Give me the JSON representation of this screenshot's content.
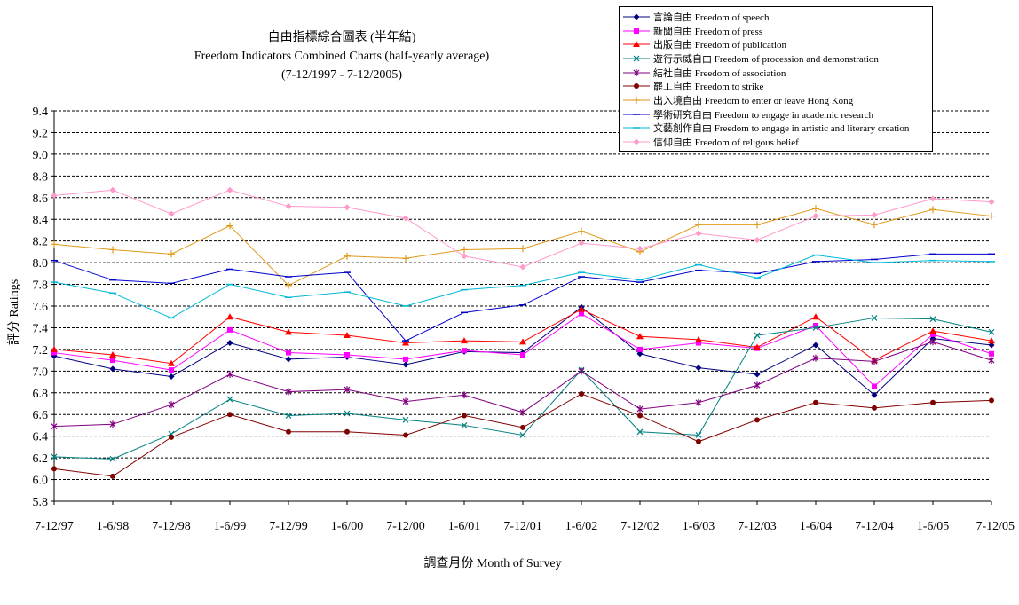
{
  "chart_data": {
    "type": "line",
    "title": "自由指標綜合圖表 (半年結)",
    "subtitle": "Freedom Indicators Combined Charts (half-yearly average)",
    "period": "(7-12/1997 - 7-12/2005)",
    "xlabel": "調查月份 Month of Survey",
    "ylabel": "評分 Ratings",
    "ylim": [
      5.8,
      9.4
    ],
    "ytick_step": 0.2,
    "grid": true,
    "legend_position": "top-right",
    "categories": [
      "7-12/97",
      "1-6/98",
      "7-12/98",
      "1-6/99",
      "7-12/99",
      "1-6/00",
      "7-12/00",
      "1-6/01",
      "7-12/01",
      "1-6/02",
      "7-12/02",
      "1-6/03",
      "7-12/03",
      "1-6/04",
      "7-12/04",
      "1-6/05",
      "7-12/05"
    ],
    "series": [
      {
        "name": "言論自由 Freedom of speech",
        "color": "#00007f",
        "marker": "diamond",
        "values": [
          7.14,
          7.02,
          6.95,
          7.26,
          7.11,
          7.13,
          7.06,
          7.18,
          7.17,
          7.59,
          7.16,
          7.03,
          6.97,
          7.24,
          6.78,
          7.3,
          7.24
        ]
      },
      {
        "name": "新聞自由 Freedom of press",
        "color": "#ff00ff",
        "marker": "square",
        "values": [
          7.17,
          7.1,
          7.01,
          7.38,
          7.17,
          7.15,
          7.11,
          7.19,
          7.15,
          7.53,
          7.2,
          7.26,
          7.21,
          7.42,
          6.86,
          7.34,
          7.16
        ]
      },
      {
        "name": "出版自由 Freedom of publication",
        "color": "#ff0000",
        "marker": "triangle",
        "values": [
          7.2,
          7.15,
          7.07,
          7.5,
          7.36,
          7.33,
          7.26,
          7.28,
          7.27,
          7.57,
          7.32,
          7.29,
          7.22,
          7.5,
          7.1,
          7.37,
          7.28
        ]
      },
      {
        "name": "遊行示威自由 Freedom of procession and demonstration",
        "color": "#008080",
        "marker": "x",
        "values": [
          6.21,
          6.19,
          6.42,
          6.74,
          6.59,
          6.61,
          6.55,
          6.5,
          6.41,
          7.01,
          6.44,
          6.41,
          7.33,
          7.4,
          7.49,
          7.48,
          7.36
        ]
      },
      {
        "name": "結社自由 Freedom of association",
        "color": "#800080",
        "marker": "star",
        "values": [
          6.49,
          6.51,
          6.69,
          6.97,
          6.81,
          6.83,
          6.72,
          6.78,
          6.62,
          7.0,
          6.65,
          6.71,
          6.87,
          7.12,
          7.09,
          7.27,
          7.1
        ]
      },
      {
        "name": "罷工自由 Freedom to strike",
        "color": "#800000",
        "marker": "circle",
        "values": [
          6.1,
          6.03,
          6.39,
          6.6,
          6.44,
          6.44,
          6.41,
          6.59,
          6.48,
          6.79,
          6.59,
          6.35,
          6.55,
          6.71,
          6.66,
          6.71,
          6.73
        ]
      },
      {
        "name": "出入境自由 Freedom to enter or leave Hong Kong",
        "color": "#e09a1a",
        "marker": "plus",
        "values": [
          8.17,
          8.12,
          8.08,
          8.34,
          7.79,
          8.06,
          8.04,
          8.12,
          8.13,
          8.29,
          8.1,
          8.35,
          8.35,
          8.5,
          8.35,
          8.49,
          8.43
        ]
      },
      {
        "name": "學術研究自由 Freedom to engage in academic research",
        "color": "#0000cc",
        "marker": "dash",
        "values": [
          8.02,
          7.84,
          7.81,
          7.94,
          7.87,
          7.91,
          7.28,
          7.54,
          7.61,
          7.87,
          7.82,
          7.93,
          7.9,
          8.01,
          8.03,
          8.08,
          8.08
        ]
      },
      {
        "name": "文藝創作自由 Freedom to engage in artistic and literary creation",
        "color": "#00b8d8",
        "marker": "dash",
        "values": [
          7.82,
          7.72,
          7.49,
          7.8,
          7.68,
          7.73,
          7.6,
          7.75,
          7.79,
          7.91,
          7.84,
          7.98,
          7.86,
          8.07,
          8.0,
          8.02,
          8.01
        ]
      },
      {
        "name": "信仰自由 Freedom of religous belief",
        "color": "#ff99cc",
        "marker": "diamond",
        "values": [
          8.62,
          8.67,
          8.45,
          8.67,
          8.52,
          8.51,
          8.41,
          8.06,
          7.96,
          8.18,
          8.13,
          8.27,
          8.21,
          8.43,
          8.44,
          8.59,
          8.56
        ]
      }
    ]
  }
}
